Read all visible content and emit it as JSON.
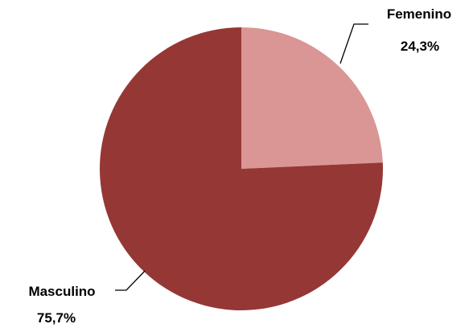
{
  "chart_data": {
    "type": "pie",
    "title": "",
    "start_angle_deg": 0,
    "direction": "clockwise",
    "slices": [
      {
        "label": "Femenino",
        "value": 24.3,
        "value_label": "24,3%",
        "color": "#d99694"
      },
      {
        "label": "Masculino",
        "value": 75.7,
        "value_label": "75,7%",
        "color": "#953735"
      }
    ]
  }
}
